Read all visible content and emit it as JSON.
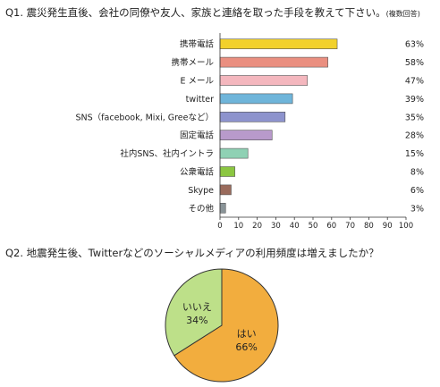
{
  "q1": {
    "title": "Q1. 震災発生直後、会社の同僚や友人、家族と連絡を取った手段を教えて下さい。",
    "note": "(複数回答)"
  },
  "q2": {
    "title": "Q2. 地震発生後、Twitterなどのソーシャルメディアの利用頻度は増えましたか？"
  },
  "chart_data": [
    {
      "type": "bar",
      "orientation": "horizontal",
      "categories": [
        "携帯電話",
        "携帯メール",
        "E メール",
        "twitter",
        "SNS（facebook, Mixi, Greeなど）",
        "固定電話",
        "社内SNS、社内イントラ",
        "公衆電話",
        "Skype",
        "その他"
      ],
      "values": [
        63,
        58,
        47,
        39,
        35,
        28,
        15,
        8,
        6,
        3
      ],
      "value_labels": [
        "63%",
        "58%",
        "47%",
        "39%",
        "35%",
        "28%",
        "15%",
        "8%",
        "6%",
        "3%"
      ],
      "colors": [
        "#f2d12b",
        "#ea8f80",
        "#f4b7be",
        "#6fb5da",
        "#8d93cd",
        "#b89acb",
        "#8fd1b4",
        "#8bc641",
        "#9a6b5c",
        "#8a9498"
      ],
      "xlim": [
        0,
        100
      ],
      "xticks": [
        0,
        10,
        20,
        30,
        40,
        50,
        60,
        70,
        80,
        90,
        100
      ],
      "grid": false
    },
    {
      "type": "pie",
      "categories": [
        "はい",
        "いいえ"
      ],
      "values": [
        66,
        34
      ],
      "value_labels": [
        "66%",
        "34%"
      ],
      "colors": [
        "#f2ad3e",
        "#bde089"
      ]
    }
  ]
}
